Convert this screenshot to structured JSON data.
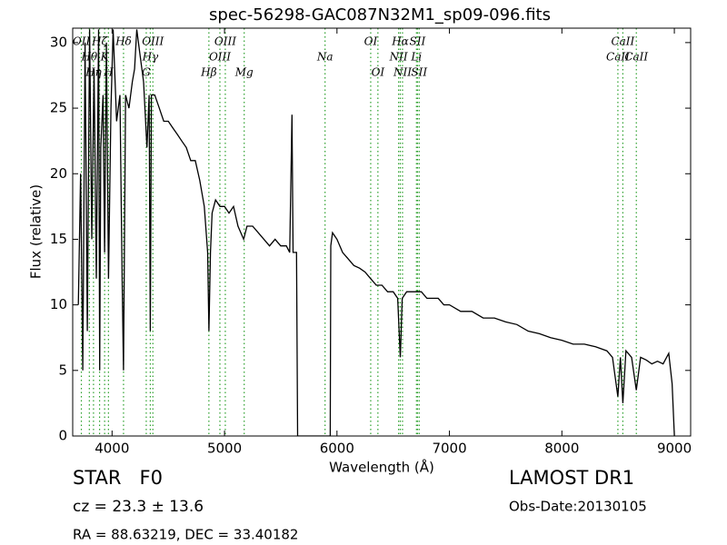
{
  "chart_data": {
    "type": "line",
    "title": "spec-56298-GAC087N32M1_sp09-096.fits",
    "x_label": "Wavelength (Å)",
    "y_label": "Flux (relative)",
    "xlim": [
      3650,
      9145
    ],
    "ylim": [
      0,
      31.1
    ],
    "xticks": [
      4000,
      5000,
      6000,
      7000,
      8000,
      9000
    ],
    "yticks": [
      0,
      5,
      10,
      15,
      20,
      25,
      30
    ],
    "color": "#000000",
    "line_color": "#2ca02c",
    "lines": [
      {
        "label": "OII",
        "x": 3727
      },
      {
        "label": "Hθ",
        "x": 3798
      },
      {
        "label": "Hη",
        "x": 3835
      },
      {
        "label": "Hζ",
        "x": 3889
      },
      {
        "label": "K",
        "x": 3934
      },
      {
        "label": "H",
        "x": 3968
      },
      {
        "label": "Hδ",
        "x": 4102
      },
      {
        "label": "Hγ",
        "x": 4340
      },
      {
        "label": "G",
        "x": 4304
      },
      {
        "label": "OIII",
        "x": 4363
      },
      {
        "label": "OIII",
        "x": 4959
      },
      {
        "label": "Hβ",
        "x": 4861
      },
      {
        "label": "OIII",
        "x": 5007
      },
      {
        "label": "Na",
        "x": 5894
      },
      {
        "label": "Mg",
        "x": 5175
      },
      {
        "label": "OI",
        "x": 6300
      },
      {
        "label": "NII",
        "x": 6548
      },
      {
        "label": "OI",
        "x": 6364
      },
      {
        "label": "Hα",
        "x": 6563
      },
      {
        "label": "Li",
        "x": 6707
      },
      {
        "label": "NII",
        "x": 6583
      },
      {
        "label": "SII",
        "x": 6716
      },
      {
        "label": "CaII",
        "x": 8498
      },
      {
        "label": "SII",
        "x": 6731
      },
      {
        "label": "CaII",
        "x": 8542
      },
      {
        "label": "CaII",
        "x": 8662
      }
    ],
    "x": [
      3700,
      3720,
      3740,
      3760,
      3780,
      3800,
      3820,
      3840,
      3860,
      3880,
      3890,
      3900,
      3920,
      3934,
      3950,
      3968,
      3990,
      4010,
      4040,
      4070,
      4090,
      4102,
      4120,
      4150,
      4180,
      4200,
      4220,
      4250,
      4280,
      4310,
      4330,
      4340,
      4350,
      4380,
      4420,
      4460,
      4500,
      4540,
      4580,
      4620,
      4660,
      4700,
      4740,
      4780,
      4820,
      4850,
      4861,
      4875,
      4890,
      4920,
      4960,
      5000,
      5040,
      5080,
      5120,
      5170,
      5200,
      5250,
      5300,
      5350,
      5400,
      5450,
      5500,
      5550,
      5580,
      5600,
      5610,
      5640,
      5650,
      5900,
      5940,
      5945,
      5960,
      6000,
      6050,
      6100,
      6150,
      6200,
      6250,
      6300,
      6350,
      6400,
      6450,
      6500,
      6540,
      6563,
      6580,
      6620,
      6660,
      6700,
      6750,
      6800,
      6850,
      6900,
      6950,
      7000,
      7100,
      7200,
      7300,
      7400,
      7500,
      7600,
      7700,
      7800,
      7900,
      8000,
      8100,
      8200,
      8300,
      8400,
      8450,
      8498,
      8520,
      8542,
      8570,
      8620,
      8662,
      8700,
      8750,
      8800,
      8850,
      8900,
      8950,
      8980,
      9000
    ],
    "values": [
      10,
      20,
      5,
      30,
      8,
      31,
      15,
      28,
      12,
      31,
      5,
      22,
      26,
      14,
      30,
      12,
      25,
      31,
      24,
      26,
      12,
      5,
      26,
      25,
      27,
      28,
      31,
      29,
      27,
      22,
      26,
      8,
      26,
      26,
      25,
      24,
      24,
      23.5,
      23,
      22.5,
      22,
      21,
      21,
      19.5,
      17.5,
      14,
      8,
      14,
      17,
      18,
      17.5,
      17.5,
      17,
      17.5,
      16,
      15,
      16,
      16,
      15.5,
      15,
      14.5,
      15,
      14.5,
      14.5,
      14,
      24.5,
      14,
      14,
      0,
      0,
      0,
      14.5,
      15.5,
      15,
      14,
      13.5,
      13,
      12.8,
      12.5,
      12,
      11.5,
      11.5,
      11,
      11,
      10.5,
      6,
      10.5,
      11,
      11,
      11,
      11,
      10.5,
      10.5,
      10.5,
      10,
      10,
      9.5,
      9.5,
      9,
      9,
      8.7,
      8.5,
      8,
      7.8,
      7.5,
      7.3,
      7,
      7,
      6.8,
      6.5,
      6,
      3,
      6,
      2.5,
      6.5,
      6,
      3.5,
      6,
      5.8,
      5.5,
      5.7,
      5.5,
      6.3,
      4,
      0
    ]
  },
  "info": {
    "class": "STAR   F0",
    "cz": "cz = 23.3 ± 13.6",
    "coords": "RA = 88.63219, DEC = 33.40182",
    "survey": "LAMOST DR1",
    "obs_date": "Obs-Date:20130105"
  }
}
